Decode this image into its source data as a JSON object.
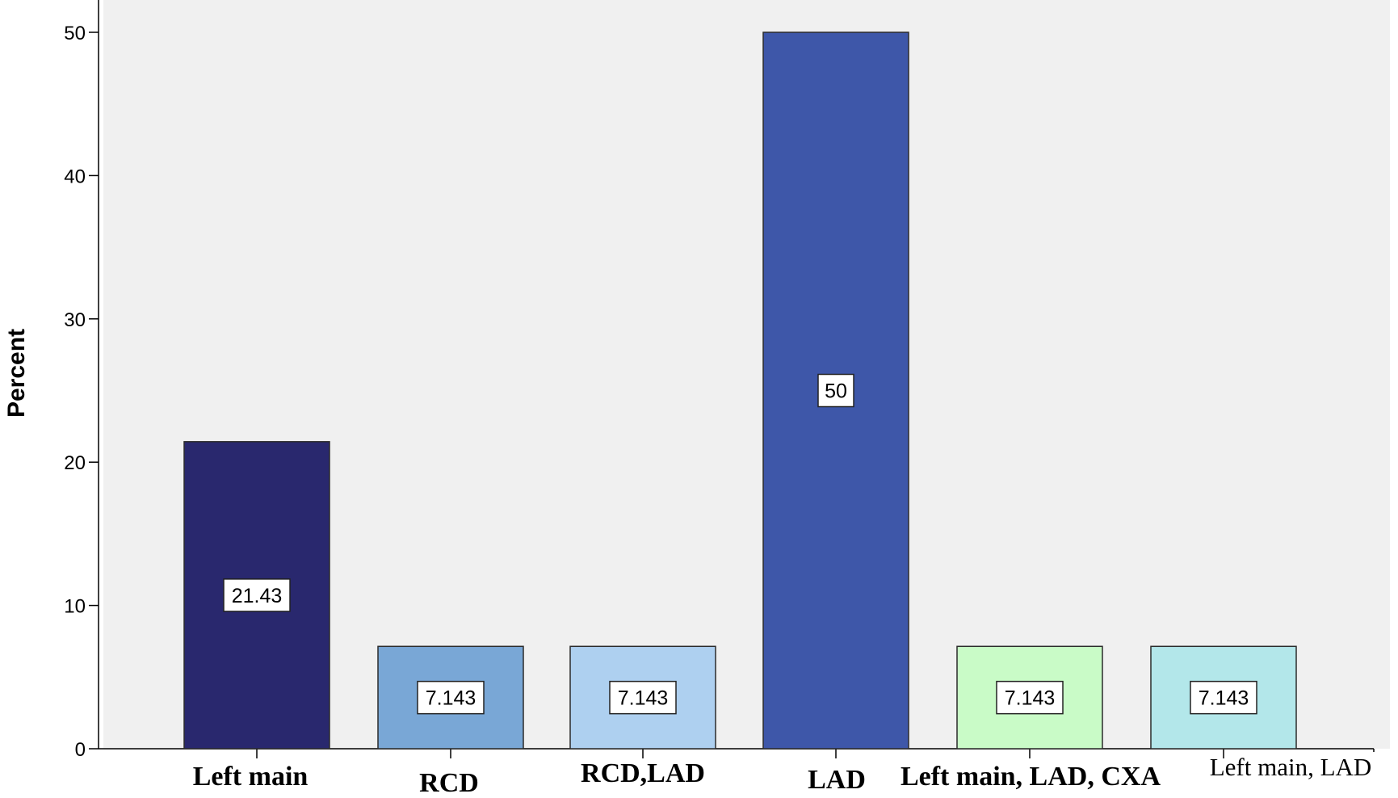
{
  "chart_data": {
    "type": "bar",
    "title": "",
    "xlabel": "",
    "ylabel": "Percent",
    "ylim": [
      0,
      52
    ],
    "yticks": [
      0,
      10,
      20,
      30,
      40,
      50
    ],
    "grid": false,
    "legend": "none",
    "categories": [
      "Left main",
      "RCD",
      "RCD,LAD",
      "LAD",
      "Left main, LAD, CXA",
      "Left main, LAD"
    ],
    "values": [
      21.43,
      7.143,
      7.143,
      50,
      7.143,
      7.143
    ],
    "data_labels": [
      "21.43",
      "7.143",
      "7.143",
      "50",
      "7.143",
      "7.143"
    ],
    "colors": [
      "#29286e",
      "#79a7d6",
      "#aed0f0",
      "#3e57a9",
      "#c9fbc7",
      "#b3e7ea"
    ],
    "plot_background": "#f0f0f0"
  }
}
